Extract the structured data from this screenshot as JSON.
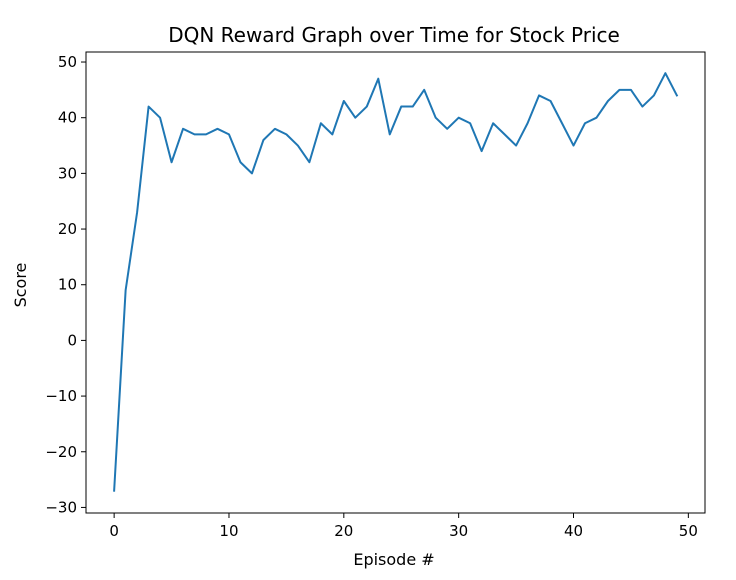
{
  "chart_data": {
    "type": "line",
    "title": "DQN Reward Graph over Time for Stock Price",
    "xlabel": "Episode #",
    "ylabel": "Score",
    "xlim": [
      -2.45,
      51.45
    ],
    "ylim": [
      -31,
      51.8
    ],
    "xticks": [
      0,
      10,
      20,
      30,
      40,
      50
    ],
    "yticks": [
      -30,
      -20,
      -10,
      0,
      10,
      20,
      30,
      40,
      50
    ],
    "xtick_labels": [
      "0",
      "10",
      "20",
      "30",
      "40",
      "50"
    ],
    "ytick_labels": [
      "−30",
      "−20",
      "−10",
      "0",
      "10",
      "20",
      "30",
      "40",
      "50"
    ],
    "grid": false,
    "legend": "none",
    "series": [
      {
        "color": "#1f77b4",
        "x": [
          0,
          1,
          2,
          3,
          4,
          5,
          6,
          7,
          8,
          9,
          10,
          11,
          12,
          13,
          14,
          15,
          16,
          17,
          18,
          19,
          20,
          21,
          22,
          23,
          24,
          25,
          26,
          27,
          28,
          29,
          30,
          31,
          32,
          33,
          34,
          35,
          36,
          37,
          38,
          39,
          40,
          41,
          42,
          43,
          44,
          45,
          46,
          47,
          48,
          49
        ],
        "y": [
          -27,
          9,
          23,
          42,
          40,
          32,
          38,
          37,
          37,
          38,
          37,
          32,
          30,
          36,
          38,
          37,
          35,
          32,
          39,
          37,
          43,
          40,
          42,
          47,
          37,
          42,
          42,
          45,
          40,
          38,
          40,
          39,
          34,
          39,
          37,
          35,
          39,
          44,
          43,
          39,
          35,
          39,
          40,
          43,
          45,
          45,
          42,
          44,
          48,
          44
        ]
      }
    ]
  }
}
